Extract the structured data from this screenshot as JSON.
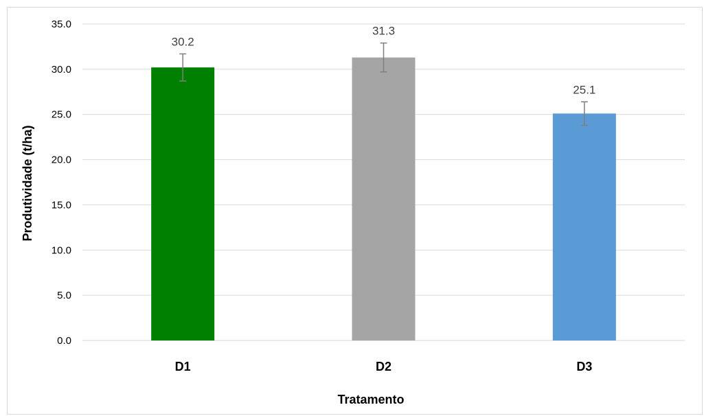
{
  "chart_data": {
    "type": "bar",
    "title": "",
    "xlabel": "Tratamento",
    "ylabel": "Produtividade (t/ha)",
    "categories": [
      "D1",
      "D2",
      "D3"
    ],
    "values": [
      30.2,
      31.3,
      25.1
    ],
    "data_labels": [
      "30.2",
      "31.3",
      "25.1"
    ],
    "error_bars": [
      {
        "low": 28.7,
        "high": 31.7
      },
      {
        "low": 29.7,
        "high": 32.9
      },
      {
        "low": 23.8,
        "high": 26.4
      }
    ],
    "colors": [
      "#008000",
      "#a5a5a5",
      "#5b9bd5"
    ],
    "ylim": [
      0,
      35
    ],
    "yticks": [
      0,
      5,
      10,
      15,
      20,
      25,
      30,
      35
    ],
    "ytick_labels": [
      "0.0",
      "5.0",
      "10.0",
      "15.0",
      "20.0",
      "25.0",
      "30.0",
      "35.0"
    ],
    "grid": true,
    "legend": "none"
  }
}
